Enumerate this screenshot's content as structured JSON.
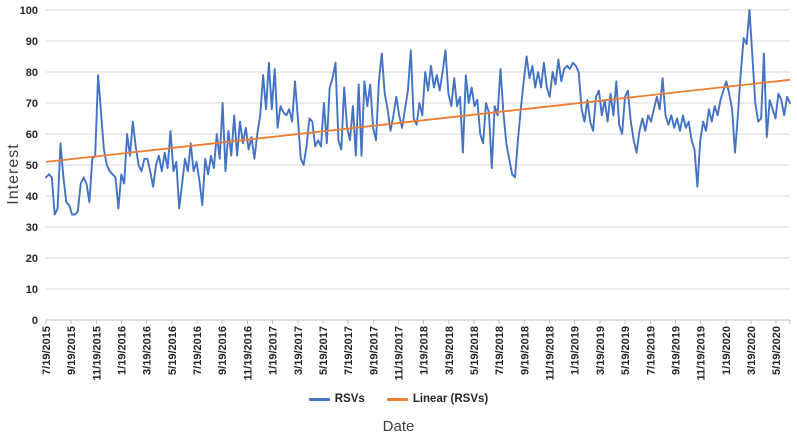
{
  "chart_data": {
    "type": "line",
    "title": "",
    "xlabel": "Date",
    "ylabel": "Interest",
    "ylim": [
      0,
      100
    ],
    "y_ticks": [
      0,
      10,
      20,
      30,
      40,
      50,
      60,
      70,
      80,
      90,
      100
    ],
    "grid": true,
    "legend_position": "bottom",
    "x_tick_labels": [
      "7/19/2015",
      "9/19/2015",
      "11/19/2015",
      "1/19/2016",
      "3/19/2016",
      "5/19/2016",
      "7/19/2016",
      "9/19/2016",
      "11/19/2016",
      "1/19/2017",
      "3/19/2017",
      "5/19/2017",
      "7/19/2017",
      "9/19/2017",
      "11/19/2017",
      "1/19/2018",
      "3/19/2018",
      "5/19/2018",
      "7/19/2018",
      "9/19/2018",
      "11/19/2018",
      "1/19/2019",
      "3/19/2019",
      "5/19/2019",
      "7/19/2019",
      "9/19/2019",
      "11/19/2019",
      "1/19/2020",
      "3/19/2020",
      "5/19/2020"
    ],
    "series": [
      {
        "name": "RSVs",
        "color": "#4472C4",
        "values": [
          46,
          47,
          46,
          34,
          36,
          57,
          46,
          38,
          37,
          34,
          34,
          35,
          44,
          46,
          44,
          38,
          52,
          53,
          79,
          67,
          55,
          50,
          48,
          47,
          46,
          36,
          47,
          44,
          60,
          53,
          64,
          56,
          50,
          48,
          52,
          52,
          48,
          43,
          50,
          53,
          48,
          54,
          49,
          61,
          48,
          51,
          36,
          44,
          52,
          48,
          57,
          48,
          51,
          45,
          37,
          52,
          47,
          53,
          49,
          60,
          52,
          70,
          48,
          61,
          53,
          66,
          53,
          64,
          57,
          62,
          55,
          59,
          52,
          60,
          66,
          79,
          68,
          83,
          68,
          81,
          62,
          69,
          67,
          66,
          68,
          64,
          77,
          65,
          52,
          50,
          56,
          65,
          64,
          56,
          58,
          56,
          70,
          57,
          75,
          78,
          83,
          58,
          55,
          75,
          62,
          58,
          69,
          53,
          76,
          53,
          77,
          69,
          76,
          62,
          58,
          77,
          86,
          73,
          68,
          61,
          66,
          72,
          66,
          62,
          68,
          74,
          87,
          65,
          63,
          70,
          66,
          80,
          74,
          82,
          75,
          79,
          74,
          80,
          87,
          73,
          69,
          78,
          69,
          72,
          54,
          79,
          70,
          75,
          69,
          71,
          60,
          57,
          70,
          67,
          49,
          69,
          66,
          81,
          67,
          57,
          52,
          47,
          46,
          58,
          68,
          77,
          85,
          78,
          82,
          75,
          80,
          75,
          83,
          75,
          72,
          80,
          76,
          84,
          77,
          81,
          82,
          81,
          83,
          82,
          80,
          68,
          64,
          71,
          64,
          61,
          72,
          74,
          66,
          71,
          64,
          73,
          66,
          77,
          63,
          60,
          72,
          74,
          64,
          58,
          54,
          61,
          65,
          61,
          66,
          64,
          68,
          72,
          68,
          78,
          66,
          63,
          66,
          62,
          65,
          61,
          66,
          62,
          64,
          58,
          55,
          43,
          58,
          64,
          61,
          68,
          64,
          69,
          66,
          71,
          74,
          77,
          73,
          68,
          54,
          66,
          80,
          91,
          89,
          100,
          85,
          70,
          64,
          65,
          86,
          59,
          71,
          68,
          65,
          73,
          71,
          66,
          72,
          70
        ]
      },
      {
        "name": "Linear (RSVs)",
        "color": "#ED7D31",
        "type": "trendline",
        "start_value": 51,
        "end_value": 77.5
      }
    ]
  },
  "colors": {
    "gridline": "#D9D9D9",
    "axis": "#BFBFBF",
    "tick_text": "#262626",
    "axis_title_text": "#3f3f3f"
  }
}
